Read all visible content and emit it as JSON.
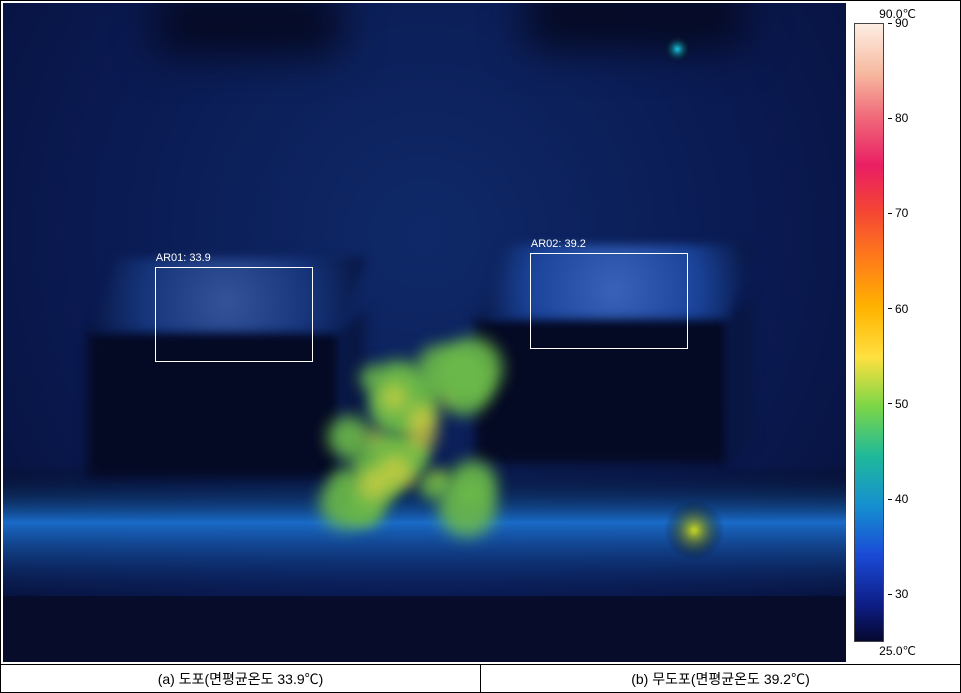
{
  "scale": {
    "top_label": "90.0℃",
    "bottom_label": "25.0℃",
    "min": 25,
    "max": 90,
    "ticks": [
      90,
      80,
      70,
      60,
      50,
      40,
      30
    ],
    "gradient_stops": [
      {
        "pct": 0,
        "color": "#fdeee3"
      },
      {
        "pct": 8,
        "color": "#f7b9a0"
      },
      {
        "pct": 15,
        "color": "#f06a7a"
      },
      {
        "pct": 23,
        "color": "#e91e63"
      },
      {
        "pct": 30,
        "color": "#f44336"
      },
      {
        "pct": 38,
        "color": "#ff7b1a"
      },
      {
        "pct": 46,
        "color": "#ffb300"
      },
      {
        "pct": 54,
        "color": "#ffe040"
      },
      {
        "pct": 62,
        "color": "#7bd647"
      },
      {
        "pct": 70,
        "color": "#1fb99a"
      },
      {
        "pct": 78,
        "color": "#1690d0"
      },
      {
        "pct": 86,
        "color": "#1a4bd6"
      },
      {
        "pct": 94,
        "color": "#0e1e88"
      },
      {
        "pct": 100,
        "color": "#05082e"
      }
    ]
  },
  "thermal": {
    "background_base": "#0a1950",
    "dark_object": "#050a24",
    "side": "#091744",
    "top_surface_left": "#15347a",
    "top_surface_right": "#1a4399",
    "floor_glow": "#1a6bc8",
    "hot_center": "#6bb94a",
    "hot_center_core": "#e6d640",
    "hot_spot_right": "#b5c92b",
    "tiny_hot": "#18b5d0"
  },
  "rois": [
    {
      "id": "AR01",
      "value": "33.9",
      "left_pct": 18.0,
      "top_pct": 40.0,
      "w_pct": 18.8,
      "h_pct": 14.5
    },
    {
      "id": "AR02",
      "value": "39.2",
      "left_pct": 62.5,
      "top_pct": 38.0,
      "w_pct": 18.8,
      "h_pct": 14.5
    }
  ],
  "captions": {
    "left": "(a) 도포(면평균온도 33.9℃)",
    "right": "(b) 무도포(면평균온도 39.2℃)"
  }
}
